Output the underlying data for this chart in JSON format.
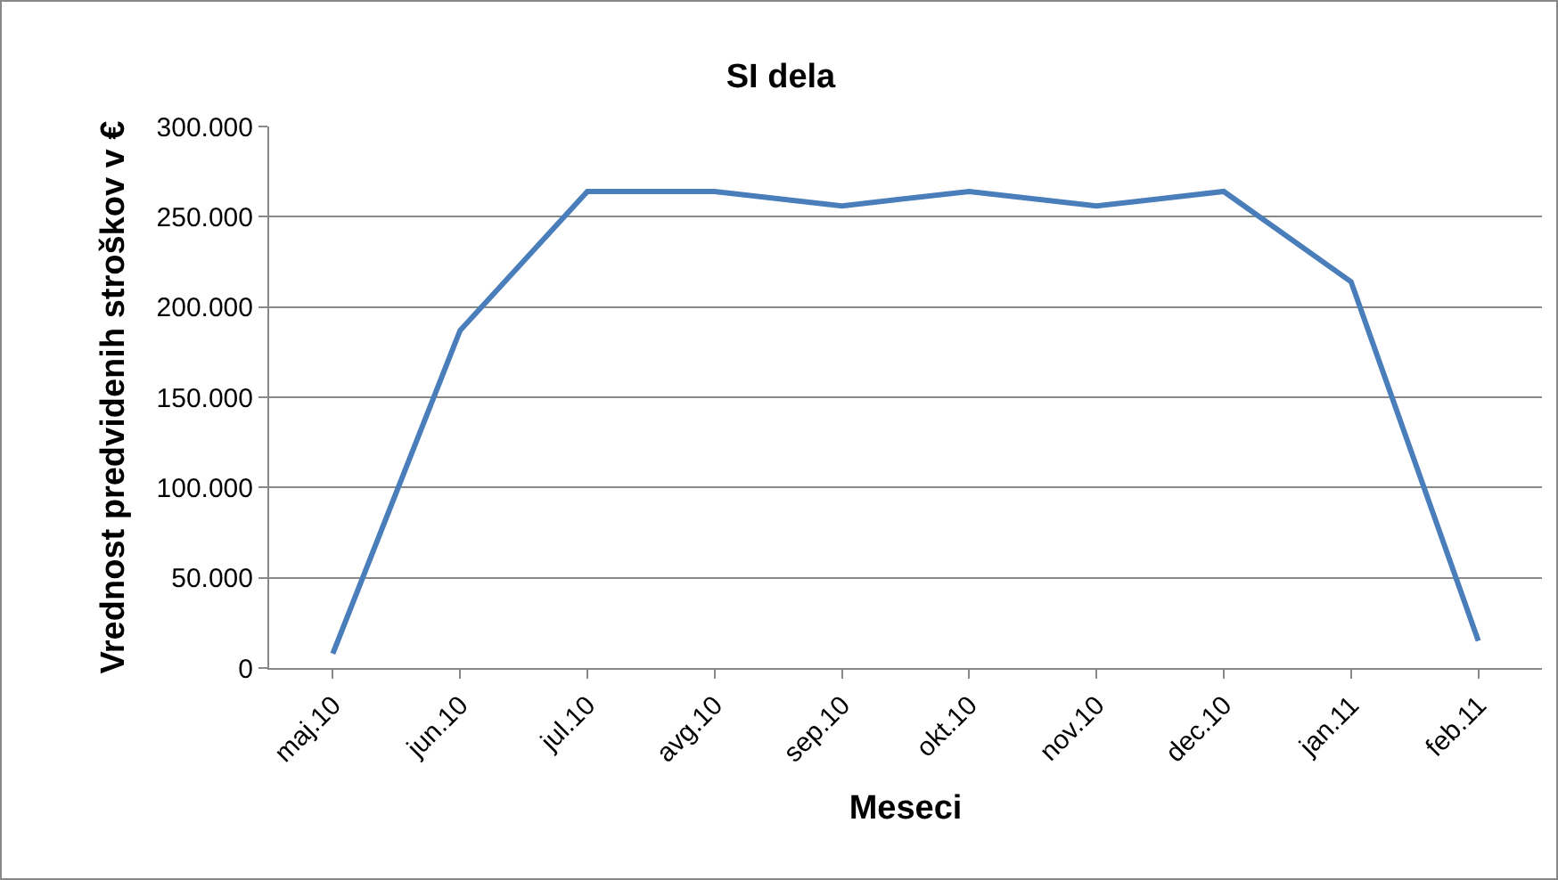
{
  "chart_data": {
    "type": "line",
    "title": "SI dela",
    "xlabel": "Meseci",
    "ylabel": "Vrednost predvidenih stroškov v €",
    "categories": [
      "maj.10",
      "jun.10",
      "jul.10",
      "avg.10",
      "sep.10",
      "okt.10",
      "nov.10",
      "dec.10",
      "jan.11",
      "feb.11"
    ],
    "series": [
      {
        "color": "#4a7ebb",
        "values": [
          8000,
          187000,
          264000,
          264000,
          256000,
          264000,
          256000,
          264000,
          214000,
          15000
        ]
      }
    ],
    "ylim": [
      0,
      300000
    ],
    "yticks": [
      0,
      {
        "value": 50000,
        "label": "50.000"
      },
      {
        "value": 100000,
        "label": "100.000"
      },
      {
        "value": 150000,
        "label": "150.000"
      },
      {
        "value": 200000,
        "label": "200.000"
      },
      {
        "value": 250000,
        "label": "250.000"
      },
      {
        "value": 300000,
        "label": "300.000"
      }
    ],
    "grid": "y",
    "legend": false,
    "marker": "none",
    "line_style": "solid"
  }
}
